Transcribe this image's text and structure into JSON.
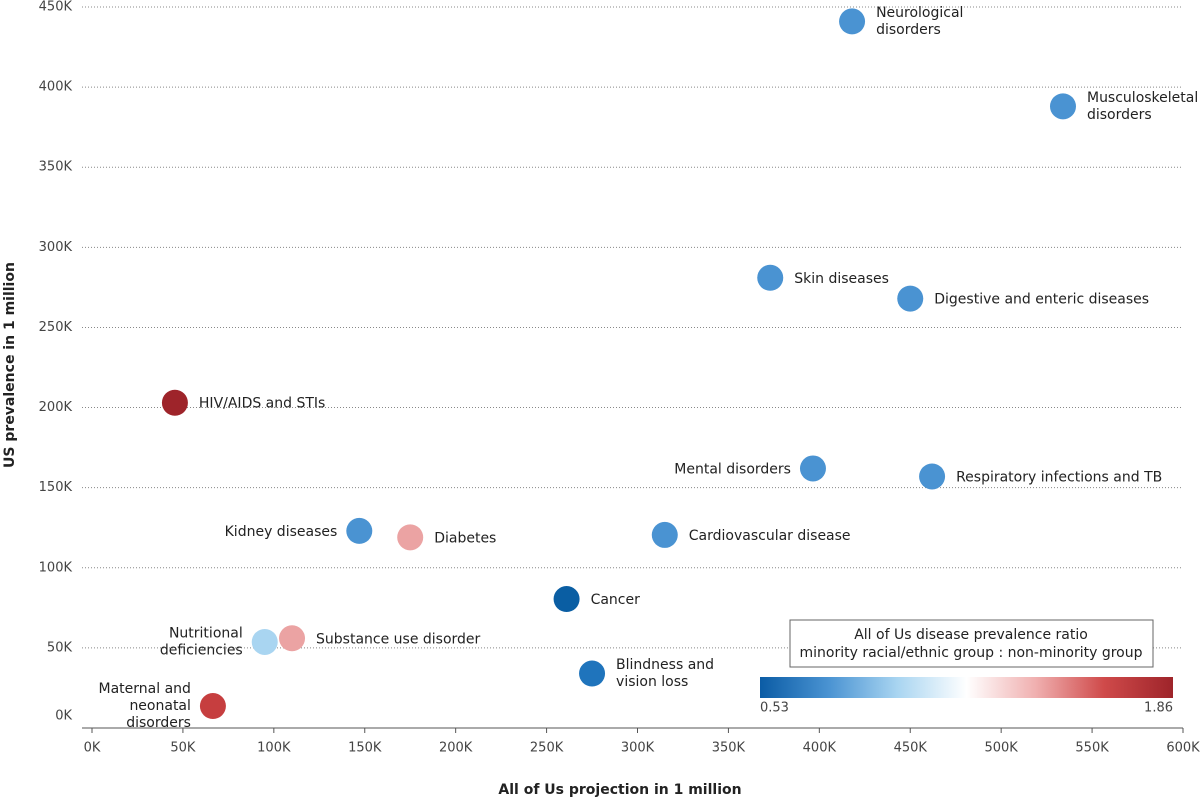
{
  "chart_data": {
    "type": "scatter",
    "xlabel": "All of Us projection in 1 million",
    "ylabel": "US prevalence in 1 million",
    "xlim": [
      0,
      600000
    ],
    "ylim": [
      0,
      450000
    ],
    "xticks": [
      {
        "value": 0,
        "label": "0K"
      },
      {
        "value": 50000,
        "label": "50K"
      },
      {
        "value": 100000,
        "label": "100K"
      },
      {
        "value": 150000,
        "label": "150K"
      },
      {
        "value": 200000,
        "label": "200K"
      },
      {
        "value": 250000,
        "label": "250K"
      },
      {
        "value": 300000,
        "label": "300K"
      },
      {
        "value": 350000,
        "label": "350K"
      },
      {
        "value": 400000,
        "label": "400K"
      },
      {
        "value": 450000,
        "label": "450K"
      },
      {
        "value": 500000,
        "label": "500K"
      },
      {
        "value": 550000,
        "label": "550K"
      },
      {
        "value": 600000,
        "label": "600K"
      }
    ],
    "yticks": [
      {
        "value": 0,
        "label": "0K"
      },
      {
        "value": 50000,
        "label": "50K"
      },
      {
        "value": 100000,
        "label": "100K"
      },
      {
        "value": 150000,
        "label": "150K"
      },
      {
        "value": 200000,
        "label": "200K"
      },
      {
        "value": 250000,
        "label": "250K"
      },
      {
        "value": 300000,
        "label": "300K"
      },
      {
        "value": 350000,
        "label": "350K"
      },
      {
        "value": 400000,
        "label": "400K"
      },
      {
        "value": 450000,
        "label": "450K"
      }
    ],
    "grid": true,
    "labels": [
      [
        "Neurological",
        "disorders"
      ],
      [
        "Musculoskeletal",
        "disorders"
      ],
      [
        "Skin diseases"
      ],
      [
        "Digestive and enteric diseases"
      ],
      [
        "HIV/AIDS and STIs"
      ],
      [
        "Mental disorders"
      ],
      [
        "Respiratory infections and TB"
      ],
      [
        "Kidney diseases"
      ],
      [
        "Diabetes"
      ],
      [
        "Cardiovascular disease"
      ],
      [
        "Cancer"
      ],
      [
        "Nutritional",
        "deficiencies"
      ],
      [
        "Substance use disorder"
      ],
      [
        "Blindness and",
        "vision loss"
      ],
      [
        "Maternal and",
        "neonatal",
        "disorders"
      ]
    ],
    "x": [
      418000,
      534000,
      373000,
      450000,
      45600,
      396500,
      462000,
      147000,
      175000,
      315000,
      261000,
      95000,
      110000,
      275000,
      66500
    ],
    "y": [
      441000,
      388000,
      281000,
      268000,
      203000,
      162000,
      157000,
      123000,
      119000,
      120500,
      80500,
      53700,
      56000,
      34000,
      13700
    ],
    "colors": [
      "#4a93d2",
      "#4a93d2",
      "#4a93d2",
      "#4a93d2",
      "#9e242a",
      "#4a93d2",
      "#4a93d2",
      "#4a93d2",
      "#eba3a3",
      "#4a93d2",
      "#0a5ea3",
      "#a9d5f1",
      "#eba3a3",
      "#1f74bc",
      "#c63e3f"
    ],
    "colorbar": {
      "title": [
        "All of Us disease prevalence ratio",
        "minority racial/ethnic group : non-minority group"
      ],
      "min": 0.53,
      "max": 1.86,
      "colors": [
        "#0b5ca5",
        "#4a93d2",
        "#a9d5f1",
        "#ffffff",
        "#f0b0b0",
        "#cf4a4a",
        "#9e242a"
      ]
    }
  }
}
